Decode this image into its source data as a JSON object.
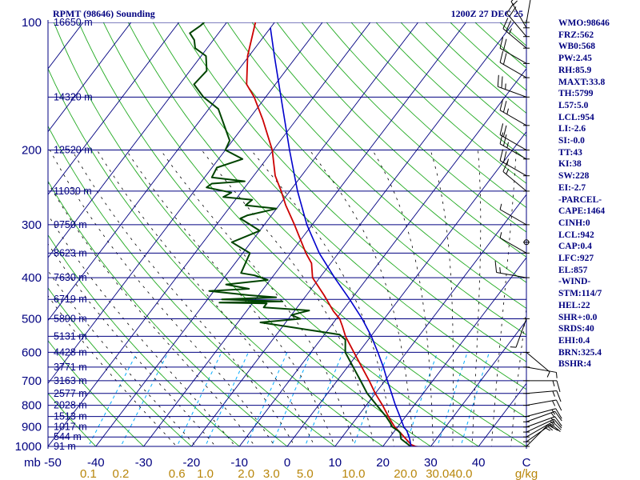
{
  "header": {
    "station": "RPMT (98646) Sounding",
    "time": "1200Z 27 DEC 25"
  },
  "indices": [
    "WMO:98646",
    "FRZ:562",
    "WB0:568",
    "PW:2.45",
    "RH:85.9",
    "MAXT:33.8",
    "TH:5799",
    "L57:5.0",
    "LCL:954",
    "LI:-2.6",
    "SI:-0.0",
    "TT:43",
    "KI:38",
    "SW:228",
    "EI:-2.7",
    "-PARCEL-",
    "CAPE:1464",
    "CINH:0",
    "LCL:942",
    "CAP:0.4",
    "LFC:927",
    "EL:857",
    "-WIND-",
    "STM:114/7",
    "HEL:22",
    "SHR+:0.0",
    "SRDS:40",
    "EHI:0.4",
    "BRN:325.4",
    "BSHR:4"
  ],
  "colors": {
    "isobar": "#000080",
    "isotherm": "#000080",
    "dry_adiabat": "#22aa22",
    "moist_adiabat": "#000000",
    "mixing_ratio": "#00aaff",
    "temperature": "#cc0000",
    "dewpoint": "#004400",
    "parcel": "#0000cc",
    "wind_barb": "#000000",
    "axis_text": "#000080",
    "mixing_text": "#b8860b"
  },
  "chart_data": {
    "type": "line",
    "title": "RPMT (98646) Sounding",
    "xlabel": "C",
    "ylabel": "mb",
    "mixing_unit": "g/kg",
    "ylim": [
      1000,
      100
    ],
    "xlim": [
      -50,
      50
    ],
    "pressure_axis_label": "mb",
    "pressure_ticks": [
      1000,
      900,
      800,
      700,
      600,
      500,
      400,
      300,
      200,
      100
    ],
    "temperature_ticks": [
      -40,
      -30,
      -20,
      -10,
      0,
      10,
      20,
      30,
      40
    ],
    "temperature_tick_labels": [
      "-40",
      "-30",
      "-20",
      "-10",
      "0",
      "10",
      "20",
      "30",
      "40"
    ],
    "temperature_axis_left_label": "-50",
    "mixing_ratio_values": [
      0.1,
      0.2,
      0.6,
      1.0,
      2.0,
      3.0,
      5.0,
      10.0,
      20.0,
      30.0,
      40.0
    ],
    "mixing_ratio_labels": [
      "0.1",
      "0.2",
      "0.6",
      "1.0",
      "2.0",
      "3.0",
      "5.0",
      "10.0",
      "20.0",
      "30.0",
      "40.0"
    ],
    "height_levels": [
      {
        "p": 100,
        "label": "16650 m"
      },
      {
        "p": 150,
        "label": "14320 m"
      },
      {
        "p": 200,
        "label": "12520 m"
      },
      {
        "p": 250,
        "label": "11030 m"
      },
      {
        "p": 300,
        "label": "9750 m"
      },
      {
        "p": 350,
        "label": "8623 m"
      },
      {
        "p": 400,
        "label": "7630 m"
      },
      {
        "p": 450,
        "label": "6719 m"
      },
      {
        "p": 500,
        "label": "5890 m"
      },
      {
        "p": 550,
        "label": "5131 m"
      },
      {
        "p": 600,
        "label": "4428 m"
      },
      {
        "p": 650,
        "label": "3771 m"
      },
      {
        "p": 700,
        "label": "3163 m"
      },
      {
        "p": 750,
        "label": "2577 m"
      },
      {
        "p": 800,
        "label": "2028 m"
      },
      {
        "p": 850,
        "label": "1513 m"
      },
      {
        "p": 900,
        "label": "1017 m"
      },
      {
        "p": 950,
        "label": "544 m"
      },
      {
        "p": 1000,
        "label": "91 m"
      }
    ],
    "series": [
      {
        "name": "Temperature",
        "points": [
          [
            1005,
            28.5
          ],
          [
            1000,
            26.8
          ],
          [
            990,
            25.6
          ],
          [
            960,
            23.6
          ],
          [
            930,
            21.6
          ],
          [
            900,
            19.4
          ],
          [
            870,
            17.6
          ],
          [
            850,
            16.4
          ],
          [
            800,
            13.4
          ],
          [
            750,
            10.0
          ],
          [
            700,
            6.7
          ],
          [
            650,
            3.0
          ],
          [
            600,
            -1.0
          ],
          [
            550,
            -5.3
          ],
          [
            520,
            -7.6
          ],
          [
            500,
            -9.3
          ],
          [
            480,
            -11.8
          ],
          [
            440,
            -16.3
          ],
          [
            400,
            -21.5
          ],
          [
            370,
            -24.0
          ],
          [
            350,
            -26.8
          ],
          [
            300,
            -33.7
          ],
          [
            270,
            -38.6
          ],
          [
            250,
            -41.8
          ],
          [
            230,
            -45.5
          ],
          [
            200,
            -50.2
          ],
          [
            170,
            -56.9
          ],
          [
            150,
            -62.4
          ],
          [
            140,
            -66.0
          ],
          [
            120,
            -70.3
          ],
          [
            100,
            -74.0
          ]
        ]
      },
      {
        "name": "Dewpoint",
        "points": [
          [
            1005,
            25.8
          ],
          [
            1000,
            25.8
          ],
          [
            960,
            22.6
          ],
          [
            930,
            21.5
          ],
          [
            920,
            20.8
          ],
          [
            900,
            18.9
          ],
          [
            880,
            17.8
          ],
          [
            850,
            15.9
          ],
          [
            800,
            12.2
          ],
          [
            750,
            8.3
          ],
          [
            700,
            4.9
          ],
          [
            650,
            1.2
          ],
          [
            600,
            -2.8
          ],
          [
            560,
            -4.8
          ],
          [
            545,
            -6.8
          ],
          [
            535,
            -12.0
          ],
          [
            510,
            -25.3
          ],
          [
            500,
            -17.5
          ],
          [
            490,
            -20.0
          ],
          [
            478,
            -17.0
          ],
          [
            470,
            -27.0
          ],
          [
            460,
            -27.0
          ],
          [
            458,
            -37.0
          ],
          [
            455,
            -24.0
          ],
          [
            450,
            -37.0
          ],
          [
            445,
            -26.0
          ],
          [
            440,
            -32.0
          ],
          [
            430,
            -41.0
          ],
          [
            425,
            -33.0
          ],
          [
            415,
            -38.5
          ],
          [
            405,
            -30.5
          ],
          [
            395,
            -34.0
          ],
          [
            390,
            -37.2
          ],
          [
            350,
            -38.5
          ],
          [
            330,
            -44.0
          ],
          [
            310,
            -40.0
          ],
          [
            290,
            -46.0
          ],
          [
            285,
            -45.0
          ],
          [
            275,
            -40.0
          ],
          [
            270,
            -47.0
          ],
          [
            262,
            -46.5
          ],
          [
            258,
            -53.0
          ],
          [
            252,
            -52.0
          ],
          [
            245,
            -58.0
          ],
          [
            240,
            -57.5
          ],
          [
            237,
            -51.0
          ],
          [
            232,
            -58.5
          ],
          [
            220,
            -59.0
          ],
          [
            210,
            -55.0
          ],
          [
            200,
            -60.0
          ],
          [
            190,
            -60.6
          ],
          [
            160,
            -68.0
          ],
          [
            150,
            -73.0
          ],
          [
            140,
            -77.0
          ],
          [
            130,
            -76.5
          ],
          [
            120,
            -79.0
          ],
          [
            115,
            -82.5
          ],
          [
            110,
            -84.0
          ],
          [
            106,
            -86.0
          ],
          [
            102,
            -85.0
          ],
          [
            100,
            -84.7
          ]
        ]
      },
      {
        "name": "Parcel",
        "points": [
          [
            1000,
            25.9
          ],
          [
            960,
            24.4
          ],
          [
            920,
            22.6
          ],
          [
            900,
            21.3
          ],
          [
            850,
            18.8
          ],
          [
            800,
            16.1
          ],
          [
            750,
            13.4
          ],
          [
            700,
            10.5
          ],
          [
            650,
            7.5
          ],
          [
            600,
            4.0
          ],
          [
            550,
            0.1
          ],
          [
            500,
            -4.6
          ],
          [
            450,
            -10.3
          ],
          [
            400,
            -16.9
          ],
          [
            350,
            -24.0
          ],
          [
            300,
            -31.1
          ],
          [
            250,
            -38.4
          ],
          [
            200,
            -46.6
          ],
          [
            150,
            -56.8
          ],
          [
            120,
            -64.7
          ],
          [
            103,
            -70.0
          ]
        ]
      }
    ],
    "wind_barbs": [
      {
        "p": 1000,
        "dir": 45,
        "spd": 15
      },
      {
        "p": 975,
        "dir": 55,
        "spd": 15
      },
      {
        "p": 950,
        "dir": 60,
        "spd": 15
      },
      {
        "p": 925,
        "dir": 65,
        "spd": 15
      },
      {
        "p": 900,
        "dir": 70,
        "spd": 15
      },
      {
        "p": 875,
        "dir": 70,
        "spd": 15
      },
      {
        "p": 850,
        "dir": 75,
        "spd": 15
      },
      {
        "p": 800,
        "dir": 80,
        "spd": 15
      },
      {
        "p": 750,
        "dir": 85,
        "spd": 15
      },
      {
        "p": 700,
        "dir": 90,
        "spd": 15
      },
      {
        "p": 650,
        "dir": 100,
        "spd": 5
      },
      {
        "p": 600,
        "dir": 130,
        "spd": 5
      },
      {
        "p": 500,
        "dir": 200,
        "spd": 5
      },
      {
        "p": 400,
        "dir": 280,
        "spd": 15
      },
      {
        "p": 350,
        "dir": 300,
        "spd": 5
      },
      {
        "p": 330,
        "dir": 230,
        "spd": 0
      },
      {
        "p": 300,
        "dir": 300,
        "spd": 5
      },
      {
        "p": 250,
        "dir": 310,
        "spd": 15
      },
      {
        "p": 230,
        "dir": 300,
        "spd": 25
      },
      {
        "p": 210,
        "dir": 300,
        "spd": 25
      },
      {
        "p": 200,
        "dir": 300,
        "spd": 20
      },
      {
        "p": 175,
        "dir": 300,
        "spd": 25
      },
      {
        "p": 150,
        "dir": 290,
        "spd": 25
      },
      {
        "p": 135,
        "dir": 300,
        "spd": 20
      },
      {
        "p": 125,
        "dir": 300,
        "spd": 20
      },
      {
        "p": 115,
        "dir": 310,
        "spd": 25
      },
      {
        "p": 108,
        "dir": 320,
        "spd": 20
      },
      {
        "p": 103,
        "dir": 330,
        "spd": 15
      },
      {
        "p": 100,
        "dir": 10,
        "spd": 5
      }
    ]
  }
}
